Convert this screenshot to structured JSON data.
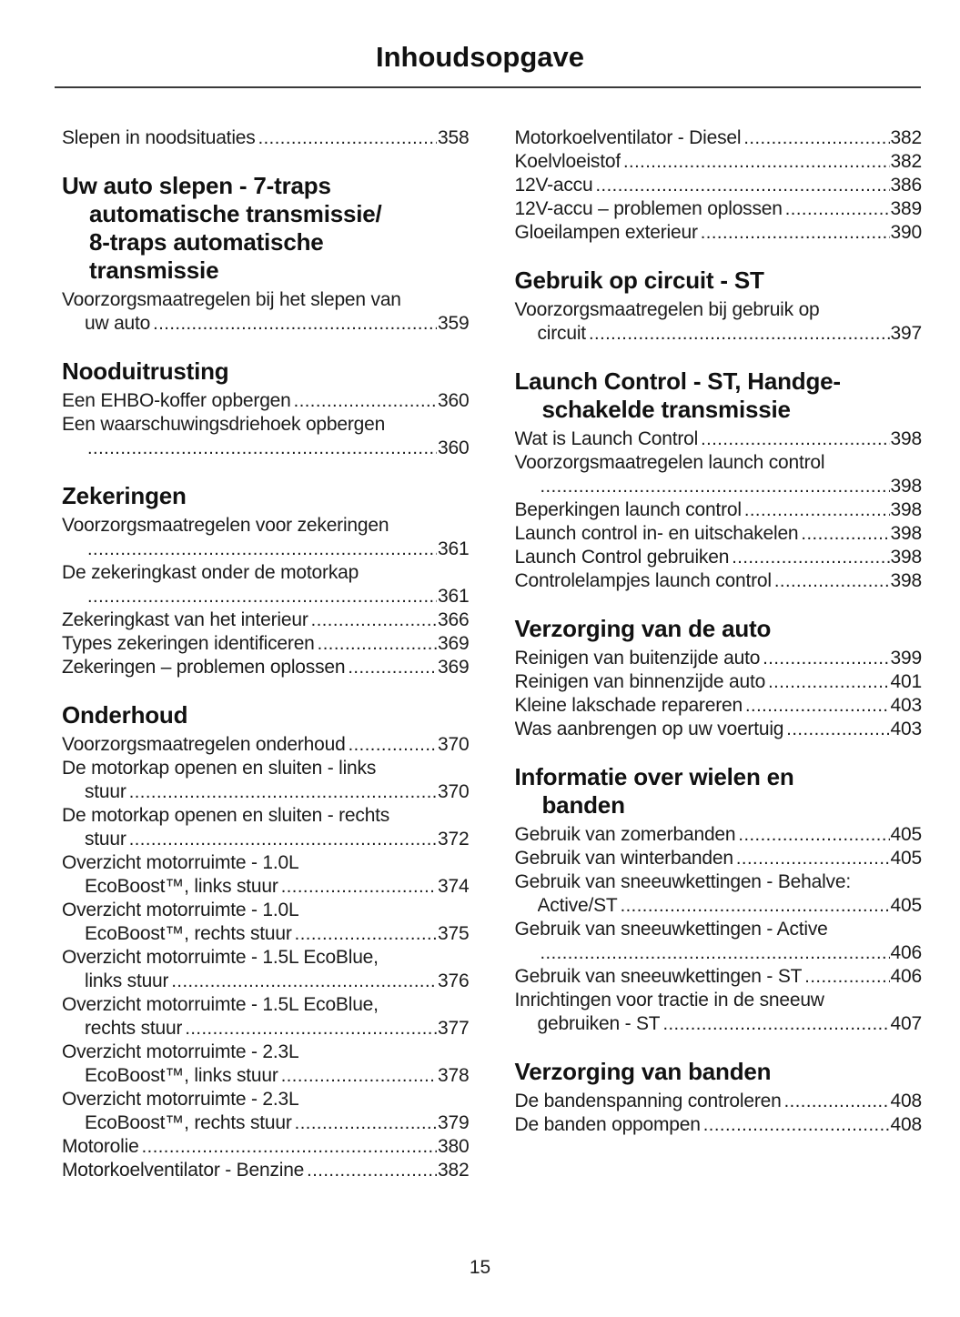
{
  "page": {
    "title": "Inhoudsopgave",
    "number": "15"
  },
  "colors": {
    "ink": "#1b1b1b",
    "heading_ink": "#111111",
    "rule": "#3a3a3a",
    "background": "#ffffff"
  },
  "toc": {
    "columns": [
      {
        "blocks": [
          {
            "heading": null,
            "entries": [
              {
                "lines": [
                  "Slepen in noodsituaties"
                ],
                "page": "358"
              }
            ]
          },
          {
            "heading": [
              "Uw auto slepen - 7-traps",
              "automatische transmissie/",
              "8-traps automatische",
              "transmissie"
            ],
            "entries": [
              {
                "lines": [
                  "Voorzorgsmaatregelen bij het slepen van",
                  "uw auto"
                ],
                "page": "359"
              }
            ]
          },
          {
            "heading": [
              "Nooduitrusting"
            ],
            "entries": [
              {
                "lines": [
                  "Een EHBO-koffer opbergen"
                ],
                "page": "360"
              },
              {
                "lines": [
                  "Een waarschuwingsdriehoek opbergen",
                  ""
                ],
                "page": "360"
              }
            ]
          },
          {
            "heading": [
              "Zekeringen"
            ],
            "entries": [
              {
                "lines": [
                  "Voorzorgsmaatregelen voor zekeringen",
                  ""
                ],
                "page": "361"
              },
              {
                "lines": [
                  "De zekeringkast onder de motorkap",
                  ""
                ],
                "page": "361"
              },
              {
                "lines": [
                  "Zekeringkast van het interieur"
                ],
                "page": "366"
              },
              {
                "lines": [
                  "Types zekeringen identificeren"
                ],
                "page": "369"
              },
              {
                "lines": [
                  "Zekeringen – problemen oplossen"
                ],
                "page": "369"
              }
            ]
          },
          {
            "heading": [
              "Onderhoud"
            ],
            "entries": [
              {
                "lines": [
                  "Voorzorgsmaatregelen onderhoud"
                ],
                "page": "370"
              },
              {
                "lines": [
                  "De motorkap openen en sluiten - links",
                  "stuur"
                ],
                "page": "370"
              },
              {
                "lines": [
                  "De motorkap openen en sluiten - rechts",
                  "stuur"
                ],
                "page": "372"
              },
              {
                "lines": [
                  "Overzicht motorruimte - 1.0L",
                  "EcoBoost™, links stuur"
                ],
                "page": "374"
              },
              {
                "lines": [
                  "Overzicht motorruimte - 1.0L",
                  "EcoBoost™, rechts stuur"
                ],
                "page": "375"
              },
              {
                "lines": [
                  "Overzicht motorruimte - 1.5L EcoBlue,",
                  "links stuur"
                ],
                "page": "376"
              },
              {
                "lines": [
                  "Overzicht motorruimte - 1.5L EcoBlue,",
                  "rechts stuur"
                ],
                "page": "377"
              },
              {
                "lines": [
                  "Overzicht motorruimte - 2.3L",
                  "EcoBoost™, links stuur"
                ],
                "page": "378"
              },
              {
                "lines": [
                  "Overzicht motorruimte - 2.3L",
                  "EcoBoost™, rechts stuur"
                ],
                "page": "379"
              },
              {
                "lines": [
                  "Motorolie"
                ],
                "page": "380"
              },
              {
                "lines": [
                  "Motorkoelventilator - Benzine"
                ],
                "page": "382"
              }
            ]
          }
        ]
      },
      {
        "blocks": [
          {
            "heading": null,
            "entries": [
              {
                "lines": [
                  "Motorkoelventilator - Diesel"
                ],
                "page": "382"
              },
              {
                "lines": [
                  "Koelvloeistof"
                ],
                "page": "382"
              },
              {
                "lines": [
                  "12V-accu"
                ],
                "page": "386"
              },
              {
                "lines": [
                  "12V-accu – problemen oplossen"
                ],
                "page": "389"
              },
              {
                "lines": [
                  "Gloeilampen exterieur"
                ],
                "page": "390"
              }
            ]
          },
          {
            "heading": [
              "Gebruik op circuit - ST"
            ],
            "entries": [
              {
                "lines": [
                  "Voorzorgsmaatregelen bij gebruik op",
                  "circuit"
                ],
                "page": "397"
              }
            ]
          },
          {
            "heading": [
              "Launch Control - ST, Handge-",
              "schakelde transmissie"
            ],
            "entries": [
              {
                "lines": [
                  "Wat is Launch Control"
                ],
                "page": "398"
              },
              {
                "lines": [
                  "Voorzorgsmaatregelen launch control",
                  ""
                ],
                "page": "398"
              },
              {
                "lines": [
                  "Beperkingen launch control"
                ],
                "page": "398"
              },
              {
                "lines": [
                  "Launch control in- en uitschakelen"
                ],
                "page": "398"
              },
              {
                "lines": [
                  "Launch Control gebruiken"
                ],
                "page": "398"
              },
              {
                "lines": [
                  "Controlelampjes launch control"
                ],
                "page": "398"
              }
            ]
          },
          {
            "heading": [
              "Verzorging van de auto"
            ],
            "entries": [
              {
                "lines": [
                  "Reinigen van buitenzijde auto"
                ],
                "page": "399"
              },
              {
                "lines": [
                  "Reinigen van binnenzijde auto"
                ],
                "page": "401"
              },
              {
                "lines": [
                  "Kleine lakschade repareren"
                ],
                "page": "403"
              },
              {
                "lines": [
                  "Was aanbrengen op uw voertuig"
                ],
                "page": "403"
              }
            ]
          },
          {
            "heading": [
              "Informatie over wielen en",
              "banden"
            ],
            "entries": [
              {
                "lines": [
                  "Gebruik van zomerbanden"
                ],
                "page": "405"
              },
              {
                "lines": [
                  "Gebruik van winterbanden"
                ],
                "page": "405"
              },
              {
                "lines": [
                  "Gebruik van sneeuwkettingen - Behalve:",
                  "Active/ST"
                ],
                "page": "405"
              },
              {
                "lines": [
                  "Gebruik van sneeuwkettingen - Active",
                  ""
                ],
                "page": "406"
              },
              {
                "lines": [
                  "Gebruik van sneeuwkettingen - ST"
                ],
                "page": "406"
              },
              {
                "lines": [
                  "Inrichtingen voor tractie in de sneeuw",
                  "gebruiken - ST"
                ],
                "page": "407"
              }
            ]
          },
          {
            "heading": [
              "Verzorging van banden"
            ],
            "entries": [
              {
                "lines": [
                  "De bandenspanning controleren"
                ],
                "page": "408"
              },
              {
                "lines": [
                  "De banden oppompen"
                ],
                "page": "408"
              }
            ]
          }
        ]
      }
    ]
  }
}
